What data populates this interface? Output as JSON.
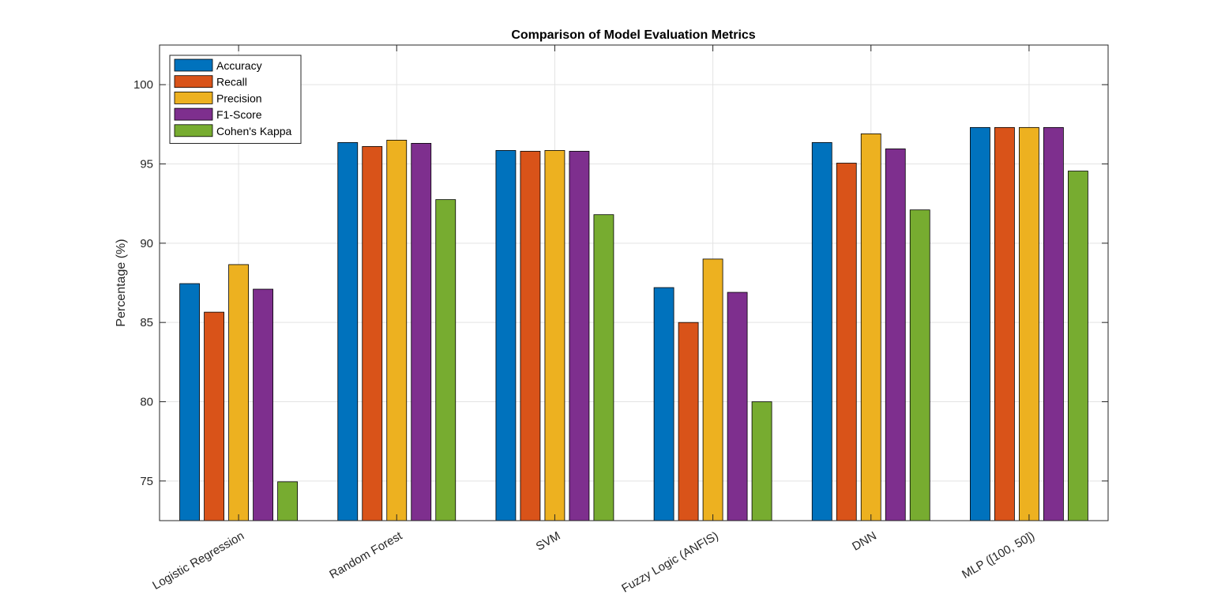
{
  "chart_data": {
    "type": "bar",
    "title": "Comparison of Model Evaluation Metrics",
    "xlabel": "",
    "ylabel": "Percentage (%)",
    "ylim": [
      72.5,
      102.5
    ],
    "yticks": [
      75,
      80,
      85,
      90,
      95,
      100
    ],
    "grid": true,
    "legend_position": "top-left",
    "categories": [
      "Logistic Regression",
      "Random Forest",
      "SVM",
      "Fuzzy Logic (ANFIS)",
      "DNN",
      "MLP ([100, 50])"
    ],
    "series": [
      {
        "name": "Accuracy",
        "color": "#0072BD",
        "values": [
          87.45,
          96.35,
          95.85,
          87.2,
          96.35,
          97.3
        ]
      },
      {
        "name": "Recall",
        "color": "#D95319",
        "values": [
          85.65,
          96.1,
          95.8,
          85.0,
          95.05,
          97.3
        ]
      },
      {
        "name": "Precision",
        "color": "#EDB120",
        "values": [
          88.65,
          96.5,
          95.85,
          89.0,
          96.9,
          97.3
        ]
      },
      {
        "name": "F1-Score",
        "color": "#7E2F8E",
        "values": [
          87.1,
          96.3,
          95.8,
          86.9,
          95.95,
          97.3
        ]
      },
      {
        "name": "Cohen's Kappa",
        "color": "#77AC30",
        "values": [
          74.95,
          92.75,
          91.8,
          80.0,
          92.1,
          94.55
        ]
      }
    ]
  }
}
